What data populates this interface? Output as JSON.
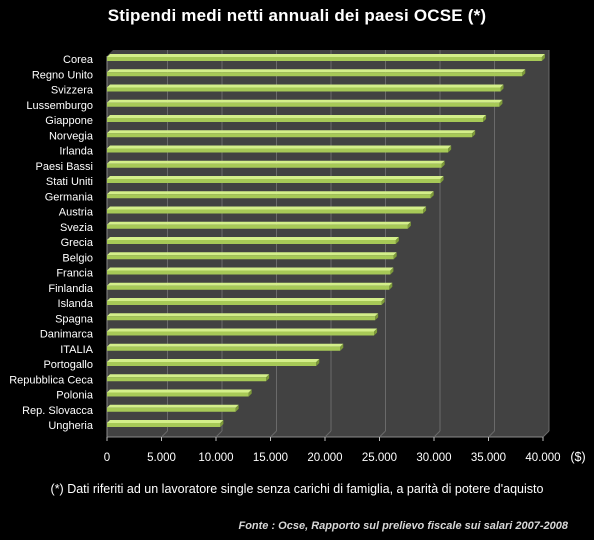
{
  "title": "Stipendi medi netti annuali dei paesi OCSE  (*)",
  "footnote": "(*) Dati riferiti ad un lavoratore single senza carichi di famiglia, a parità di potere d'aquisto",
  "source": "Fonte : Ocse,  Rapporto sul prelievo  fiscale  sui salari 2007-2008",
  "colors": {
    "background": "#000000",
    "plot_area": "#424242",
    "gridline": "#6a6a6a",
    "bar_fill": "#a7c957",
    "bar_highlight": "#d4ef8a",
    "text": "#ffffff"
  },
  "chart_data": {
    "type": "bar",
    "orientation": "horizontal",
    "title": "Stipendi medi netti annuali dei paesi OCSE  (*)",
    "xlabel": "($)",
    "ylabel": "",
    "xlim": [
      0,
      40000
    ],
    "xticks": [
      0,
      5000,
      10000,
      15000,
      20000,
      25000,
      30000,
      35000,
      40000
    ],
    "xtick_labels": [
      "0",
      "5.000",
      "10.000",
      "15.000",
      "20.000",
      "25.000",
      "30.000",
      "35.000",
      "40.000"
    ],
    "grid": "vertical",
    "categories": [
      "Corea",
      "Regno Unito",
      "Svizzera",
      "Lussemburgo",
      "Giappone",
      "Norvegia",
      "Irlanda",
      "Paesi Bassi",
      "Stati Uniti",
      "Germania",
      "Austria",
      "Svezia",
      "Grecia",
      "Belgio",
      "Francia",
      "Finlandia",
      "Islanda",
      "Spagna",
      "Danimarca",
      "ITALIA",
      "Portogallo",
      "Repubblica Ceca",
      "Polonia",
      "Rep. Slovacca",
      "Ungheria"
    ],
    "values": [
      39900,
      38100,
      36100,
      36000,
      34500,
      33500,
      31300,
      30700,
      30600,
      29700,
      29000,
      27600,
      26500,
      26300,
      26000,
      25900,
      25200,
      24600,
      24500,
      21400,
      19200,
      14600,
      13000,
      11800,
      10400
    ]
  }
}
